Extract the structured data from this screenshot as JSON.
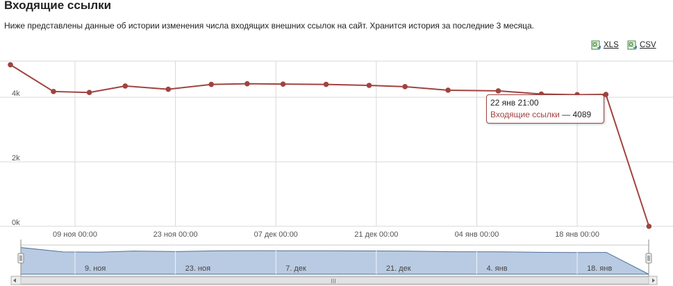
{
  "page": {
    "title": "Входящие ссылки",
    "description": "Ниже представлены данные об истории изменения числа входящих внешних ссылок на сайт. Хранится история за последние 3 месяца."
  },
  "export": {
    "xls_label": "XLS",
    "csv_label": "CSV",
    "icon": "excel-icon"
  },
  "colors": {
    "series": "#a0433f",
    "grid": "#d9d9d9",
    "navigator_fill": "#b9cbe2",
    "navigator_line": "#4d6f98"
  },
  "tooltip": {
    "time": "22 янв 21:00",
    "series": "Входящие ссылки",
    "separator": "—",
    "value": "4089"
  },
  "chart_data": {
    "type": "line",
    "title": "",
    "xlabel": "",
    "ylabel": "",
    "y_tick_labels": [
      "0k",
      "2k",
      "4k"
    ],
    "y_ticks": [
      0,
      2000,
      4000
    ],
    "ylim": [
      0,
      5200
    ],
    "x_tick_labels": [
      "09 ноя 00:00",
      "23 ноя 00:00",
      "07 дек 00:00",
      "21 дек 00:00",
      "04 янв 00:00",
      "18 янв 00:00"
    ],
    "grid": true,
    "series": [
      {
        "name": "Входящие ссылки",
        "x": [
          "2012-10-31",
          "2012-11-06",
          "2012-11-11",
          "2012-11-16",
          "2012-11-22",
          "2012-11-28",
          "2012-12-03",
          "2012-12-08",
          "2012-12-14",
          "2012-12-20",
          "2012-12-25",
          "2012-12-31",
          "2013-01-07",
          "2013-01-13",
          "2013-01-18",
          "2013-01-22",
          "2013-01-28"
        ],
        "values": [
          5010,
          4180,
          4150,
          4350,
          4250,
          4400,
          4420,
          4410,
          4400,
          4370,
          4330,
          4220,
          4200,
          4100,
          4080,
          4089,
          0
        ]
      }
    ]
  },
  "navigator": {
    "labels": [
      "9. ноя",
      "23. ноя",
      "7. дек",
      "21. дек",
      "4. янв",
      "18. янв"
    ],
    "scroll_grip": "III"
  }
}
